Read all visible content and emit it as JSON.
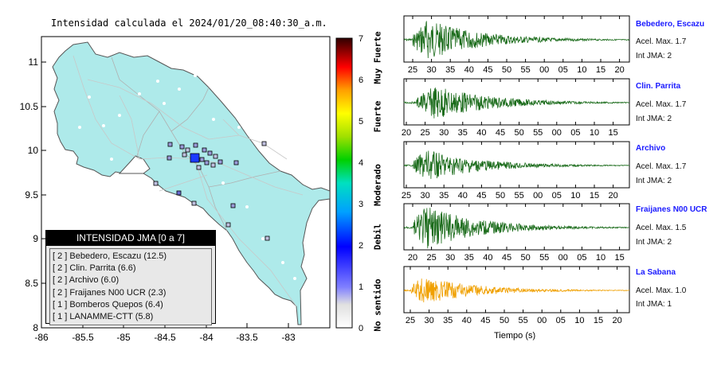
{
  "map": {
    "title": "Intensidad calculada el 2024/01/20_08:40:30_a.m.",
    "x_ticks": [
      "-86",
      "-85.5",
      "-85",
      "-84.5",
      "-84",
      "-83.5",
      "-83"
    ],
    "y_ticks": [
      "11",
      "10.5",
      "10",
      "9.5",
      "9",
      "8.5",
      "8"
    ]
  },
  "colorbar": {
    "ticks": [
      "0",
      "1",
      "2",
      "3",
      "4",
      "5",
      "6",
      "7"
    ],
    "categories": [
      "No sentido",
      "Debil",
      "Moderado",
      "Fuerte",
      "Muy Fuerte"
    ]
  },
  "legend": {
    "header": "INTENSIDAD JMA [0 a 7]",
    "rows": [
      "[ 2 ]  Bebedero, Escazu (12.5)",
      "[ 2 ]  Clin. Parrita (6.6)",
      "[ 2 ]  Archivo (6.0)",
      "[ 2 ]  Fraijanes N00 UCR (2.3)",
      "[ 1 ]  Bomberos Quepos (6.4)",
      "[ 1 ]  LANAMME-CTT (5.8)"
    ]
  },
  "traces": [
    {
      "name": "Bebedero, Escazu",
      "accel": "Acel. Max. 1.7",
      "intensity": "Int JMA: 2",
      "color": "#1a6b1a",
      "ticks": [
        "25",
        "30",
        "35",
        "40",
        "45",
        "50",
        "55",
        "00",
        "05",
        "10",
        "15",
        "20"
      ]
    },
    {
      "name": "Clin. Parrita",
      "accel": "Acel. Max. 1.7",
      "intensity": "Int JMA: 2",
      "color": "#1a6b1a",
      "ticks": [
        "20",
        "25",
        "30",
        "35",
        "40",
        "45",
        "50",
        "55",
        "00",
        "05",
        "10",
        "15"
      ]
    },
    {
      "name": "Archivo",
      "accel": "Acel. Max. 1.7",
      "intensity": "Int JMA: 2",
      "color": "#1a6b1a",
      "ticks": [
        "25",
        "30",
        "35",
        "40",
        "45",
        "50",
        "55",
        "00",
        "05",
        "10",
        "15",
        "20"
      ]
    },
    {
      "name": "Fraijanes N00 UCR",
      "accel": "Acel. Max. 1.5",
      "intensity": "Int JMA: 2",
      "color": "#1a6b1a",
      "ticks": [
        "20",
        "25",
        "30",
        "35",
        "40",
        "45",
        "50",
        "55",
        "00",
        "05",
        "10",
        "15"
      ]
    },
    {
      "name": "La Sabana",
      "accel": "Acel. Max. 1.0",
      "intensity": "Int JMA: 1",
      "color": "#f0a000",
      "ticks": [
        "25",
        "30",
        "35",
        "40",
        "45",
        "50",
        "55",
        "00",
        "05",
        "10",
        "15",
        "20"
      ]
    }
  ],
  "time_axis_label": "Tiempo (s)"
}
